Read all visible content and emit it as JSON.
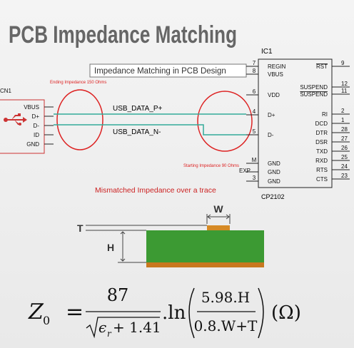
{
  "title": "PCB Impedance Matching",
  "tooltip": "Impedance Matching in PCB Design",
  "connector": {
    "ref": "CN1",
    "pins": [
      "VBUS",
      "D+",
      "D-",
      "ID",
      "GND"
    ]
  },
  "nets": {
    "positive": "USB_DATA_P+",
    "negative": "USB_DATA_N-"
  },
  "notes": {
    "ending": "Ending Impedance 150 Ohms",
    "starting": "Starting Impedance 90 Ohms",
    "mismatch": "Mismatched Impedance over a trace"
  },
  "ic": {
    "ref": "IC1",
    "part": "CP2102",
    "left_pins": [
      {
        "number": "7",
        "label": "REGIN"
      },
      {
        "number": "8",
        "label": "VBUS"
      },
      {
        "number": "6",
        "label": "VDD"
      },
      {
        "number": "4",
        "label": "D+"
      },
      {
        "number": "5",
        "label": "D-"
      },
      {
        "number": "M",
        "label": "GND"
      },
      {
        "number": "EXP",
        "label": "GND"
      },
      {
        "number": "3",
        "label": "GND"
      }
    ],
    "right_pins": [
      {
        "number": "9",
        "label": "RST"
      },
      {
        "number": "12",
        "label": "SUSPEND"
      },
      {
        "number": "11",
        "label": "SUSPEND"
      },
      {
        "number": "2",
        "label": "RI"
      },
      {
        "number": "1",
        "label": "DCD"
      },
      {
        "number": "28",
        "label": "DTR"
      },
      {
        "number": "27",
        "label": "DSR"
      },
      {
        "number": "26",
        "label": "TXD"
      },
      {
        "number": "25",
        "label": "RXD"
      },
      {
        "number": "24",
        "label": "RTS"
      },
      {
        "number": "23",
        "label": "CTS"
      }
    ]
  },
  "cross_section": {
    "width": "W",
    "thickness": "T",
    "height": "H"
  },
  "formula": {
    "lhs": "Z",
    "lhs_sub": "0",
    "equals": "=",
    "numerator": "87",
    "denominator": "ϵ",
    "denominator_sub": "r",
    "denominator_rest": "+ 1.41",
    "ln": ".ln",
    "inner_numerator": "5.98.H",
    "inner_denominator": "0.8.W+T",
    "unit": "(Ω)"
  }
}
